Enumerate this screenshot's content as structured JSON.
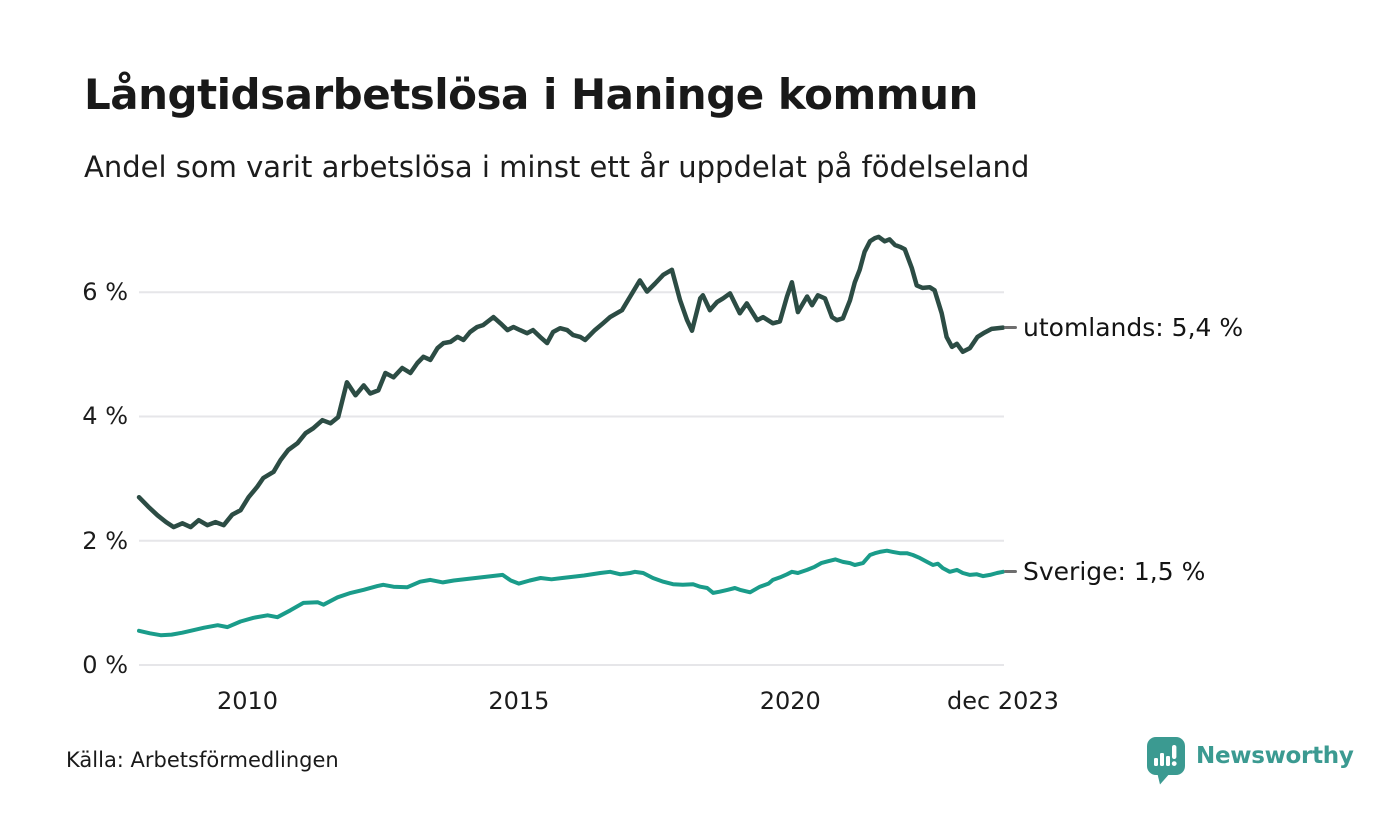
{
  "header": {
    "title": "Långtidsarbetslösa i Haninge kommun",
    "subtitle": "Andel som varit arbetslösa i minst ett år uppdelat på födelseland"
  },
  "chart_data": {
    "type": "line",
    "title": "Långtidsarbetslösa i Haninge kommun",
    "xlabel": "",
    "ylabel": "",
    "grid": true,
    "grid_color": "#e6e6e9",
    "legend_position": "end-of-line-labels-right",
    "x_axis": {
      "range": [
        2008.0,
        2023.92
      ],
      "ticks": [
        {
          "label": "2010",
          "year": 2010
        },
        {
          "label": "2015",
          "year": 2015
        },
        {
          "label": "2020",
          "year": 2020
        },
        {
          "label": "dec 2023",
          "year": 2023.92
        }
      ]
    },
    "y_axis": {
      "unit": "%",
      "ylim": [
        0,
        7
      ],
      "ticks": [
        {
          "label": "0 %",
          "value": 0
        },
        {
          "label": "2 %",
          "value": 2
        },
        {
          "label": "4 %",
          "value": 4
        },
        {
          "label": "6 %",
          "value": 6
        }
      ]
    },
    "series": [
      {
        "name": "utomlands",
        "color": "#2c4c44",
        "stroke_width": 4.5,
        "end_label": "utomlands: 5,4 %",
        "latest_value": "5,4 %",
        "points": [
          [
            2008.0,
            2.7
          ],
          [
            2008.17,
            2.55
          ],
          [
            2008.34,
            2.41
          ],
          [
            2008.5,
            2.3
          ],
          [
            2008.64,
            2.22
          ],
          [
            2008.8,
            2.28
          ],
          [
            2008.95,
            2.22
          ],
          [
            2009.1,
            2.33
          ],
          [
            2009.26,
            2.25
          ],
          [
            2009.41,
            2.3
          ],
          [
            2009.56,
            2.25
          ],
          [
            2009.72,
            2.42
          ],
          [
            2009.87,
            2.49
          ],
          [
            2010.02,
            2.7
          ],
          [
            2010.18,
            2.87
          ],
          [
            2010.29,
            3.01
          ],
          [
            2010.48,
            3.11
          ],
          [
            2010.61,
            3.3
          ],
          [
            2010.75,
            3.46
          ],
          [
            2010.92,
            3.57
          ],
          [
            2011.07,
            3.73
          ],
          [
            2011.21,
            3.81
          ],
          [
            2011.38,
            3.94
          ],
          [
            2011.53,
            3.89
          ],
          [
            2011.67,
            3.99
          ],
          [
            2011.83,
            4.55
          ],
          [
            2011.99,
            4.34
          ],
          [
            2012.14,
            4.5
          ],
          [
            2012.26,
            4.37
          ],
          [
            2012.41,
            4.42
          ],
          [
            2012.54,
            4.7
          ],
          [
            2012.69,
            4.63
          ],
          [
            2012.85,
            4.78
          ],
          [
            2013.0,
            4.7
          ],
          [
            2013.13,
            4.86
          ],
          [
            2013.24,
            4.96
          ],
          [
            2013.37,
            4.91
          ],
          [
            2013.5,
            5.1
          ],
          [
            2013.61,
            5.18
          ],
          [
            2013.74,
            5.2
          ],
          [
            2013.87,
            5.28
          ],
          [
            2013.98,
            5.23
          ],
          [
            2014.1,
            5.36
          ],
          [
            2014.23,
            5.44
          ],
          [
            2014.34,
            5.47
          ],
          [
            2014.53,
            5.6
          ],
          [
            2014.66,
            5.5
          ],
          [
            2014.79,
            5.39
          ],
          [
            2014.9,
            5.44
          ],
          [
            2015.02,
            5.39
          ],
          [
            2015.15,
            5.34
          ],
          [
            2015.26,
            5.39
          ],
          [
            2015.39,
            5.28
          ],
          [
            2015.52,
            5.18
          ],
          [
            2015.63,
            5.36
          ],
          [
            2015.76,
            5.42
          ],
          [
            2015.89,
            5.39
          ],
          [
            2016.0,
            5.31
          ],
          [
            2016.13,
            5.28
          ],
          [
            2016.22,
            5.23
          ],
          [
            2016.4,
            5.39
          ],
          [
            2016.55,
            5.5
          ],
          [
            2016.68,
            5.6
          ],
          [
            2016.9,
            5.71
          ],
          [
            2017.05,
            5.93
          ],
          [
            2017.23,
            6.19
          ],
          [
            2017.36,
            6.01
          ],
          [
            2017.51,
            6.14
          ],
          [
            2017.66,
            6.28
          ],
          [
            2017.82,
            6.36
          ],
          [
            2017.97,
            5.87
          ],
          [
            2018.1,
            5.55
          ],
          [
            2018.19,
            5.38
          ],
          [
            2018.34,
            5.9
          ],
          [
            2018.39,
            5.95
          ],
          [
            2018.52,
            5.71
          ],
          [
            2018.65,
            5.84
          ],
          [
            2018.76,
            5.9
          ],
          [
            2018.89,
            5.98
          ],
          [
            2019.07,
            5.66
          ],
          [
            2019.2,
            5.82
          ],
          [
            2019.39,
            5.55
          ],
          [
            2019.5,
            5.6
          ],
          [
            2019.68,
            5.5
          ],
          [
            2019.81,
            5.53
          ],
          [
            2019.94,
            5.93
          ],
          [
            2020.03,
            6.16
          ],
          [
            2020.14,
            5.68
          ],
          [
            2020.31,
            5.93
          ],
          [
            2020.4,
            5.79
          ],
          [
            2020.51,
            5.95
          ],
          [
            2020.64,
            5.9
          ],
          [
            2020.77,
            5.6
          ],
          [
            2020.86,
            5.55
          ],
          [
            2020.97,
            5.58
          ],
          [
            2021.1,
            5.87
          ],
          [
            2021.19,
            6.16
          ],
          [
            2021.28,
            6.36
          ],
          [
            2021.37,
            6.65
          ],
          [
            2021.47,
            6.82
          ],
          [
            2021.56,
            6.87
          ],
          [
            2021.63,
            6.89
          ],
          [
            2021.74,
            6.82
          ],
          [
            2021.83,
            6.85
          ],
          [
            2021.93,
            6.76
          ],
          [
            2022.02,
            6.73
          ],
          [
            2022.11,
            6.69
          ],
          [
            2022.24,
            6.39
          ],
          [
            2022.33,
            6.11
          ],
          [
            2022.44,
            6.07
          ],
          [
            2022.57,
            6.08
          ],
          [
            2022.66,
            6.03
          ],
          [
            2022.79,
            5.66
          ],
          [
            2022.88,
            5.28
          ],
          [
            2022.98,
            5.12
          ],
          [
            2023.07,
            5.17
          ],
          [
            2023.18,
            5.04
          ],
          [
            2023.31,
            5.1
          ],
          [
            2023.45,
            5.28
          ],
          [
            2023.58,
            5.35
          ],
          [
            2023.71,
            5.41
          ],
          [
            2023.92,
            5.43
          ]
        ]
      },
      {
        "name": "Sverige",
        "color": "#1a9c8a",
        "stroke_width": 4,
        "end_label": "Sverige: 1,5 %",
        "latest_value": "1,5 %",
        "points": [
          [
            2008.0,
            0.55
          ],
          [
            2008.2,
            0.51
          ],
          [
            2008.4,
            0.48
          ],
          [
            2008.6,
            0.49
          ],
          [
            2008.8,
            0.52
          ],
          [
            2009.0,
            0.56
          ],
          [
            2009.2,
            0.6
          ],
          [
            2009.45,
            0.64
          ],
          [
            2009.63,
            0.61
          ],
          [
            2009.87,
            0.7
          ],
          [
            2010.11,
            0.76
          ],
          [
            2010.37,
            0.8
          ],
          [
            2010.55,
            0.77
          ],
          [
            2010.79,
            0.88
          ],
          [
            2011.03,
            1.0
          ],
          [
            2011.29,
            1.01
          ],
          [
            2011.4,
            0.97
          ],
          [
            2011.66,
            1.09
          ],
          [
            2011.9,
            1.16
          ],
          [
            2012.14,
            1.21
          ],
          [
            2012.39,
            1.27
          ],
          [
            2012.5,
            1.29
          ],
          [
            2012.69,
            1.26
          ],
          [
            2012.94,
            1.25
          ],
          [
            2013.18,
            1.34
          ],
          [
            2013.37,
            1.37
          ],
          [
            2013.6,
            1.33
          ],
          [
            2013.8,
            1.36
          ],
          [
            2014.0,
            1.38
          ],
          [
            2014.2,
            1.4
          ],
          [
            2014.5,
            1.43
          ],
          [
            2014.7,
            1.45
          ],
          [
            2014.85,
            1.36
          ],
          [
            2015.0,
            1.31
          ],
          [
            2015.2,
            1.36
          ],
          [
            2015.4,
            1.4
          ],
          [
            2015.6,
            1.38
          ],
          [
            2015.8,
            1.4
          ],
          [
            2016.0,
            1.42
          ],
          [
            2016.2,
            1.44
          ],
          [
            2016.5,
            1.48
          ],
          [
            2016.68,
            1.5
          ],
          [
            2016.87,
            1.46
          ],
          [
            2017.05,
            1.48
          ],
          [
            2017.14,
            1.5
          ],
          [
            2017.29,
            1.48
          ],
          [
            2017.47,
            1.4
          ],
          [
            2017.66,
            1.34
          ],
          [
            2017.84,
            1.3
          ],
          [
            2018.02,
            1.29
          ],
          [
            2018.21,
            1.3
          ],
          [
            2018.34,
            1.26
          ],
          [
            2018.47,
            1.24
          ],
          [
            2018.58,
            1.16
          ],
          [
            2018.7,
            1.18
          ],
          [
            2018.85,
            1.21
          ],
          [
            2018.98,
            1.24
          ],
          [
            2019.07,
            1.21
          ],
          [
            2019.26,
            1.17
          ],
          [
            2019.44,
            1.26
          ],
          [
            2019.6,
            1.31
          ],
          [
            2019.68,
            1.37
          ],
          [
            2019.81,
            1.41
          ],
          [
            2019.94,
            1.46
          ],
          [
            2020.03,
            1.5
          ],
          [
            2020.14,
            1.48
          ],
          [
            2020.31,
            1.53
          ],
          [
            2020.45,
            1.58
          ],
          [
            2020.57,
            1.64
          ],
          [
            2020.7,
            1.67
          ],
          [
            2020.83,
            1.7
          ],
          [
            2020.97,
            1.66
          ],
          [
            2021.1,
            1.64
          ],
          [
            2021.19,
            1.61
          ],
          [
            2021.34,
            1.64
          ],
          [
            2021.47,
            1.77
          ],
          [
            2021.56,
            1.8
          ],
          [
            2021.65,
            1.82
          ],
          [
            2021.78,
            1.84
          ],
          [
            2021.89,
            1.82
          ],
          [
            2022.02,
            1.8
          ],
          [
            2022.15,
            1.8
          ],
          [
            2022.26,
            1.77
          ],
          [
            2022.39,
            1.72
          ],
          [
            2022.52,
            1.66
          ],
          [
            2022.63,
            1.61
          ],
          [
            2022.72,
            1.63
          ],
          [
            2022.81,
            1.56
          ],
          [
            2022.94,
            1.5
          ],
          [
            2023.07,
            1.53
          ],
          [
            2023.18,
            1.48
          ],
          [
            2023.31,
            1.45
          ],
          [
            2023.44,
            1.46
          ],
          [
            2023.55,
            1.43
          ],
          [
            2023.68,
            1.45
          ],
          [
            2023.81,
            1.48
          ],
          [
            2023.92,
            1.5
          ]
        ]
      }
    ]
  },
  "footer": {
    "source": "Källa: Arbetsförmedlingen",
    "logo_text": "Newsworthy"
  },
  "colors": {
    "brand": "#3b9a91",
    "series_utomlands": "#2c4c44",
    "series_sverige": "#1a9c8a",
    "grid": "#e6e6e9",
    "text": "#1a1a1a"
  }
}
